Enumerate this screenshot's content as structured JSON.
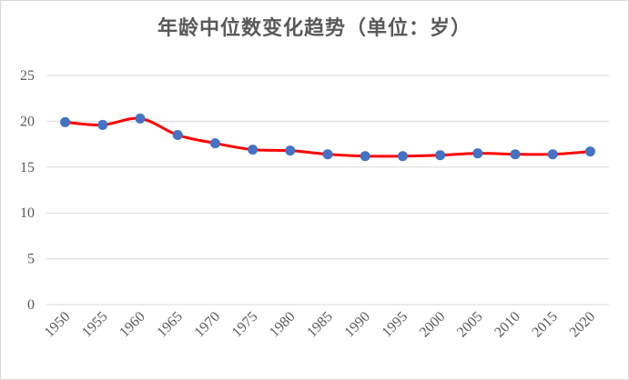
{
  "chart_data": {
    "type": "line",
    "title": "年龄中位数变化趋势（单位：岁）",
    "xlabel": "",
    "ylabel": "",
    "x": [
      "1950",
      "1955",
      "1960",
      "1965",
      "1970",
      "1975",
      "1980",
      "1985",
      "1990",
      "1995",
      "2000",
      "2005",
      "2010",
      "2015",
      "2020"
    ],
    "series": [
      {
        "values": [
          19.9,
          19.6,
          20.3,
          18.5,
          17.6,
          16.9,
          16.8,
          16.4,
          16.2,
          16.2,
          16.3,
          16.5,
          16.4,
          16.4,
          16.7
        ]
      }
    ],
    "ylim": [
      0,
      25
    ],
    "yticks": [
      0,
      5,
      10,
      15,
      20,
      25
    ],
    "grid": true,
    "legend": "none",
    "line_color": "#ff0000",
    "marker_color": "#4472c4",
    "grid_color": "#d9d9d9"
  }
}
